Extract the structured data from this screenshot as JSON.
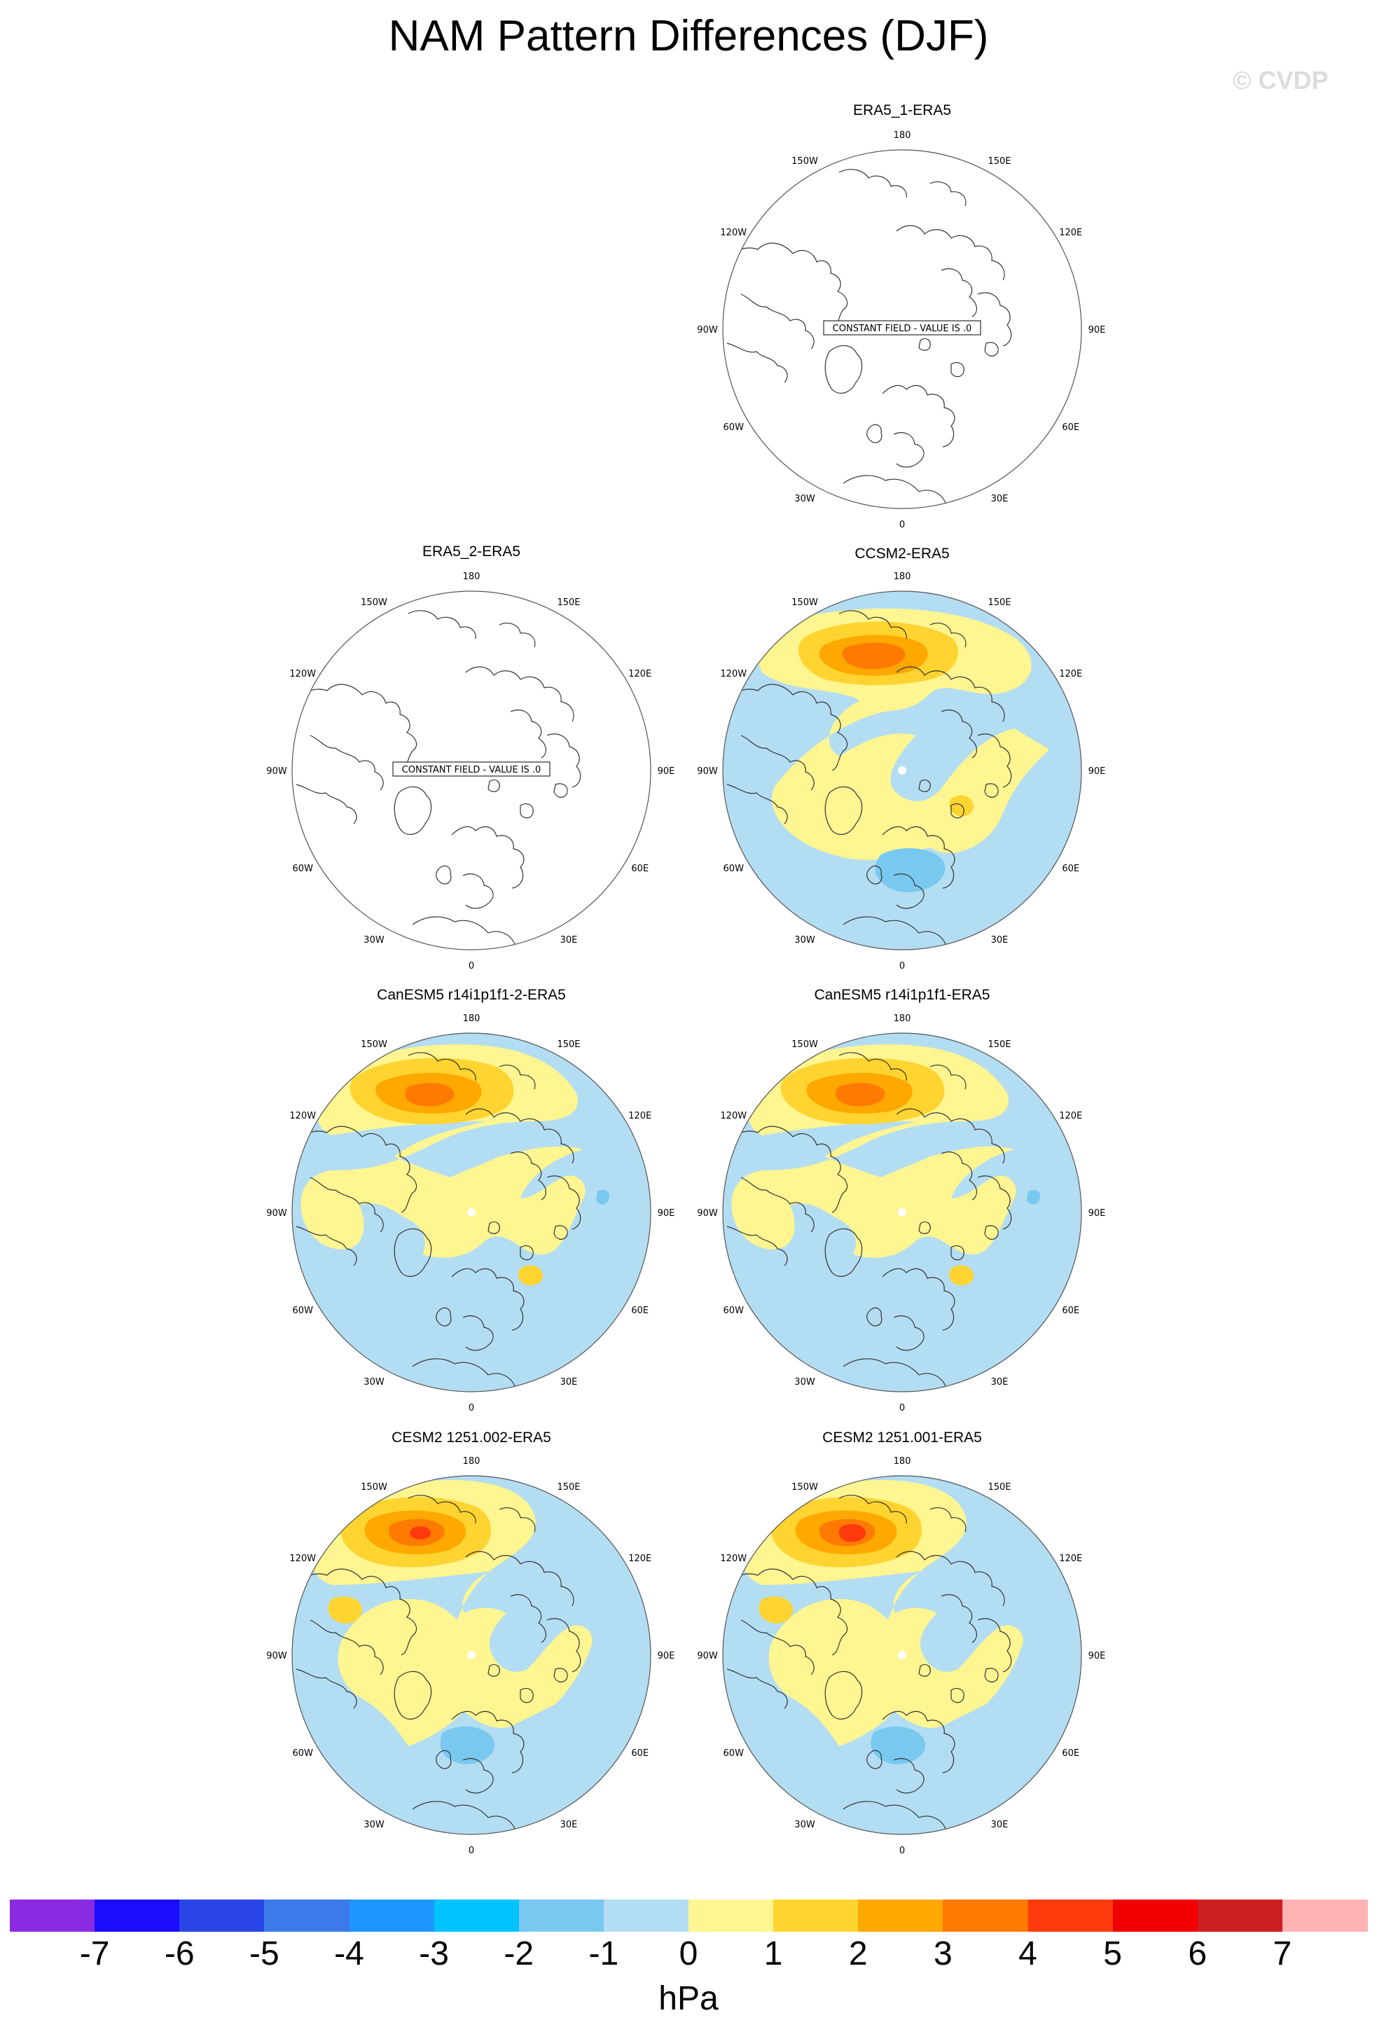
{
  "title": "NAM Pattern Differences (DJF)",
  "watermark": "© CVDP",
  "longitude_labels": {
    "top": "180",
    "bottom": "0",
    "left": "90W",
    "right": "90E",
    "upper_left_outer": "150W",
    "upper_right_outer": "150E",
    "upper_left_inner": "120W",
    "upper_right_inner": "120E",
    "lower_left_inner": "60W",
    "lower_right_inner": "60E",
    "lower_left_outer": "30W",
    "lower_right_outer": "30E"
  },
  "constant_field_text": "CONSTANT FIELD - VALUE IS .0",
  "colors": {
    "neg_weak": "#b3ddf2",
    "neg_mid": "#79c8f0",
    "pos_1": "#fff591",
    "pos_2": "#ffd430",
    "pos_3": "#ffa800",
    "pos_4": "#ff7a00",
    "pos_5": "#ff3a0c"
  },
  "panels": [
    {
      "id": "p1",
      "title": "ERA5_1-ERA5",
      "constant": true
    },
    {
      "id": "p2",
      "title": "ERA5_2-ERA5",
      "constant": true
    },
    {
      "id": "p3",
      "title": "CCSM2-ERA5",
      "constant": false
    },
    {
      "id": "p4",
      "title": "CanESM5 r14i1p1f1-2-ERA5",
      "constant": false
    },
    {
      "id": "p5",
      "title": "CanESM5 r14i1p1f1-ERA5",
      "constant": false
    },
    {
      "id": "p6",
      "title": "CESM2 1251.002-ERA5",
      "constant": false
    },
    {
      "id": "p7",
      "title": "CESM2 1251.001-ERA5",
      "constant": false
    }
  ],
  "colorbar": {
    "units": "hPa",
    "labels": [
      "-7",
      "-6",
      "-5",
      "-4",
      "-3",
      "-2",
      "-1",
      "0",
      "1",
      "2",
      "3",
      "4",
      "5",
      "6",
      "7"
    ],
    "colors": [
      "#8a2be2",
      "#1a0dff",
      "#2a45e6",
      "#3b7ae8",
      "#1e96ff",
      "#00c3ff",
      "#79c8f0",
      "#b3ddf2",
      "#fff591",
      "#ffd430",
      "#ffa800",
      "#ff7a00",
      "#ff3a0c",
      "#f20000",
      "#cc1f1f",
      "#ffb3b3"
    ]
  }
}
